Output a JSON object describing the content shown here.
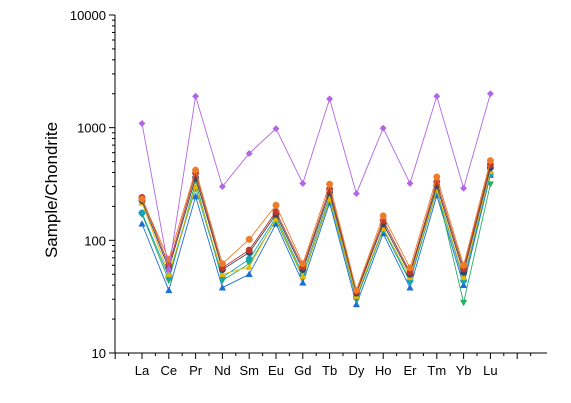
{
  "chart_data": {
    "type": "line",
    "title": "",
    "xlabel": "",
    "ylabel": "Sample/Chondrite",
    "yscale": "log",
    "ylim": [
      10,
      10000
    ],
    "yticks": [
      10,
      100,
      1000,
      10000
    ],
    "ytick_labels": [
      "10",
      "100",
      "1000",
      "10000"
    ],
    "categories": [
      "La",
      "Ce",
      "Pr",
      "Nd",
      "Sm",
      "Eu",
      "Gd",
      "Tb",
      "Dy",
      "Ho",
      "Er",
      "Tm",
      "Yb",
      "Lu"
    ],
    "grid": false,
    "legend": "none",
    "series": [
      {
        "color": "#b266e6",
        "marker": "diamond",
        "values": [
          1090,
          55,
          1900,
          300,
          590,
          980,
          320,
          1800,
          260,
          990,
          320,
          1900,
          290,
          2000
        ]
      },
      {
        "color": "#f07a28",
        "marker": "circle",
        "values": [
          232,
          68,
          420,
          62,
          102,
          205,
          62,
          315,
          36,
          165,
          57,
          365,
          60,
          510
        ]
      },
      {
        "color": "#c0392b",
        "marker": "circle",
        "values": [
          240,
          60,
          395,
          57,
          82,
          180,
          58,
          285,
          35,
          150,
          52,
          330,
          56,
          470
        ]
      },
      {
        "color": "#34495e",
        "marker": "circle",
        "values": [
          225,
          56,
          360,
          55,
          78,
          170,
          55,
          265,
          34,
          140,
          50,
          305,
          52,
          440
        ]
      },
      {
        "color": "#e6b800",
        "marker": "triangle",
        "values": [
          215,
          50,
          300,
          50,
          58,
          155,
          48,
          235,
          32,
          128,
          47,
          280,
          47,
          410
        ]
      },
      {
        "color": "#17a2b8",
        "marker": "circle",
        "values": [
          175,
          48,
          290,
          47,
          68,
          160,
          50,
          245,
          31,
          125,
          44,
          275,
          44,
          390
        ]
      },
      {
        "color": "#27ae60",
        "marker": "triangle-down",
        "values": [
          170,
          44,
          330,
          44,
          62,
          150,
          47,
          230,
          30,
          125,
          43,
          290,
          28,
          315
        ]
      },
      {
        "color": "#1a6fd6",
        "marker": "triangle",
        "values": [
          140,
          36,
          245,
          38,
          50,
          140,
          42,
          215,
          27,
          115,
          38,
          250,
          40,
          380
        ]
      }
    ]
  }
}
